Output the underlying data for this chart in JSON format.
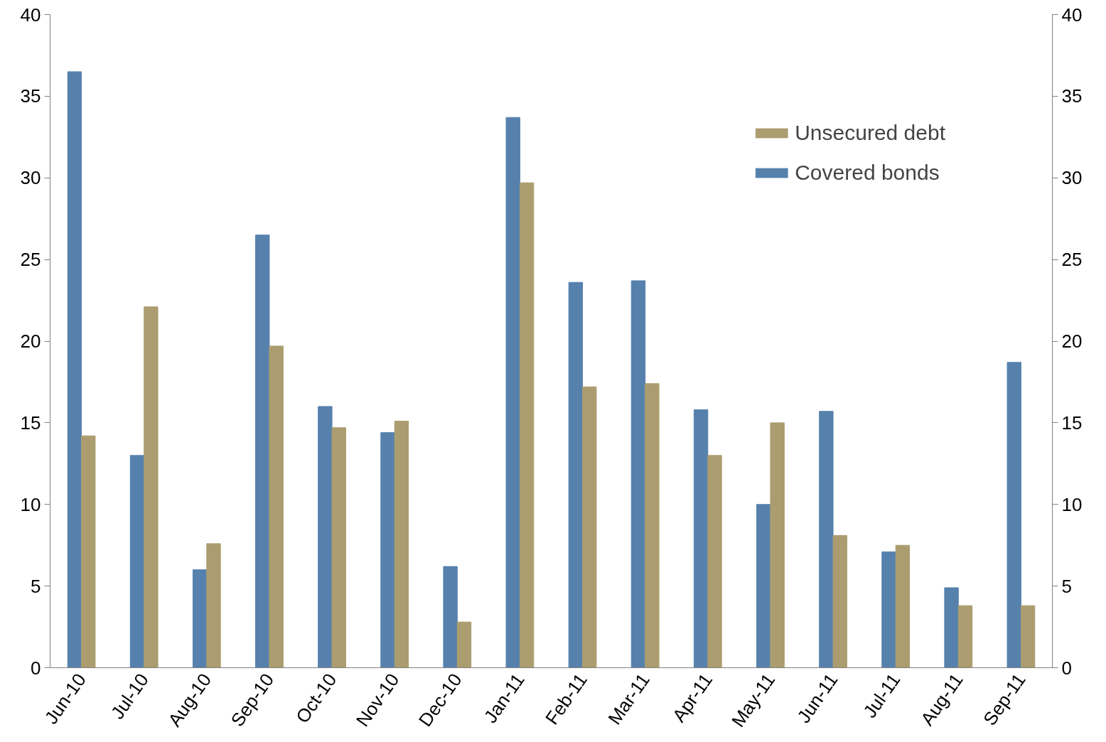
{
  "chart_data": {
    "type": "bar",
    "categories": [
      "Jun-10",
      "Jul-10",
      "Aug-10",
      "Sep-10",
      "Oct-10",
      "Nov-10",
      "Dec-10",
      "Jan-11",
      "Feb-11",
      "Mar-11",
      "Apr-11",
      "May-11",
      "Jun-11",
      "Jul-11",
      "Aug-11",
      "Sep-11"
    ],
    "series": [
      {
        "name": "Covered bonds",
        "color": "#5681ad",
        "values": [
          36.5,
          13.0,
          6.0,
          26.5,
          16.0,
          14.4,
          6.2,
          33.7,
          23.6,
          23.7,
          15.8,
          10.0,
          15.7,
          7.1,
          4.9,
          18.7
        ]
      },
      {
        "name": "Unsecured debt",
        "color": "#ab9d6f",
        "values": [
          14.2,
          22.1,
          7.6,
          19.7,
          14.7,
          15.1,
          2.8,
          29.7,
          17.2,
          17.4,
          13.0,
          15.0,
          8.1,
          7.5,
          3.8,
          3.8
        ]
      }
    ],
    "ylim": [
      0,
      40
    ],
    "yticks": [
      0,
      5,
      10,
      15,
      20,
      25,
      30,
      35,
      40
    ],
    "y2lim": [
      0,
      40
    ],
    "y2ticks": [
      0,
      5,
      10,
      15,
      20,
      25,
      30,
      35,
      40
    ],
    "grid": false,
    "legend": "top right"
  }
}
